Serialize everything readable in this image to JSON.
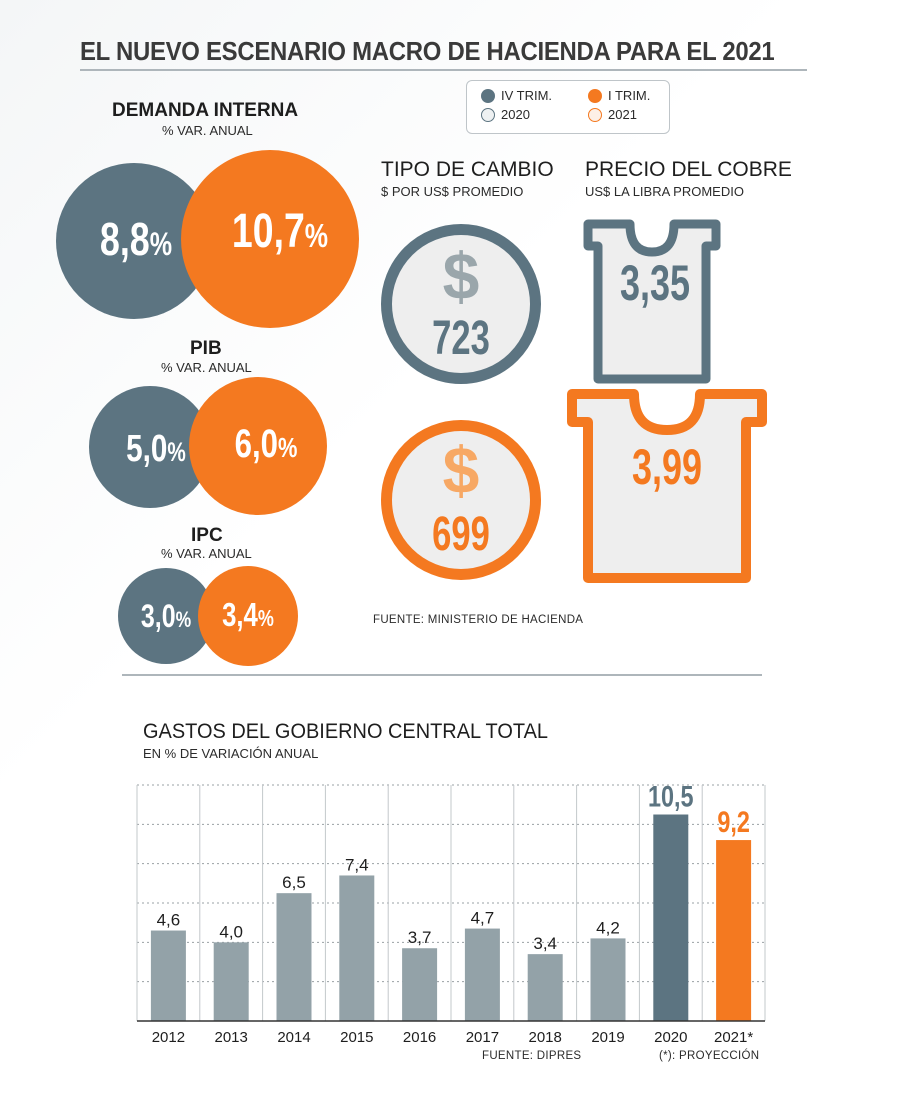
{
  "title": "EL NUEVO ESCENARIO MACRO DE HACIENDA PARA EL 2021",
  "legend": {
    "iv_trim": "IV TRIM.",
    "i_trim": "I TRIM.",
    "y2020": "2020",
    "y2021": "2021"
  },
  "colors": {
    "gray_blue": "#5c7481",
    "orange": "#f47920",
    "light_bar": "#93a2a8",
    "coin_bg": "#eeeeee"
  },
  "demanda": {
    "title": "DEMANDA INTERNA",
    "sub": "% VAR. ANUAL",
    "v2020": "8,8",
    "v2021": "10,7",
    "pct": "%"
  },
  "pib": {
    "title": "PIB",
    "sub": "% VAR. ANUAL",
    "v2020": "5,0",
    "v2021": "6,0",
    "pct": "%"
  },
  "ipc": {
    "title": "IPC",
    "sub": "% VAR. ANUAL",
    "v2020": "3,0",
    "v2021": "3,4",
    "pct": "%"
  },
  "tipo_cambio": {
    "title": "TIPO DE CAMBIO",
    "sub": "$ POR US$ PROMEDIO",
    "symbol": "$",
    "v2020": "723",
    "v2021": "699"
  },
  "cobre": {
    "title": "PRECIO DEL COBRE",
    "sub": "US$ LA LIBRA PROMEDIO",
    "v2020": "3,35",
    "v2021": "3,99"
  },
  "source_top": "FUENTE: MINISTERIO DE HACIENDA",
  "chart_data": {
    "type": "bar",
    "title": "GASTOS DEL GOBIERNO CENTRAL TOTAL",
    "subtitle": "EN % DE VARIACIÓN ANUAL",
    "categories": [
      "2012",
      "2013",
      "2014",
      "2015",
      "2016",
      "2017",
      "2018",
      "2019",
      "2020",
      "2021*"
    ],
    "values": [
      4.6,
      4.0,
      6.5,
      7.4,
      3.7,
      4.7,
      3.4,
      4.2,
      10.5,
      9.2
    ],
    "labels": [
      "4,6",
      "4,0",
      "6,5",
      "7,4",
      "3,7",
      "4,7",
      "3,4",
      "4,2",
      "10,5",
      "9,2"
    ],
    "ylim": [
      0,
      12
    ],
    "grid": true,
    "highlight": {
      "2020": "#5c7481",
      "2021*": "#f47920"
    },
    "source": "FUENTE: DIPRES",
    "note": "(*): PROYECCIÓN"
  }
}
